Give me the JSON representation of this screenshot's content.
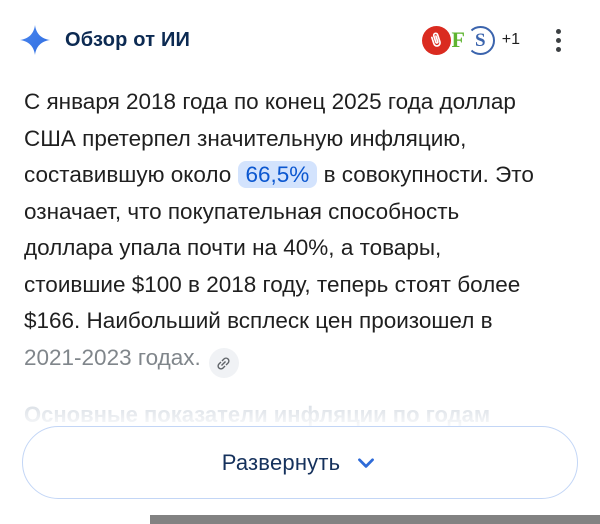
{
  "header": {
    "title": "Обзор от ИИ",
    "more_sources": "+1",
    "favicons": [
      {
        "name": "favicon-paperclip",
        "type": "paperclip",
        "bg": "#da2b20"
      },
      {
        "name": "favicon-f",
        "type": "letter",
        "letter": "F",
        "color": "#5fb431"
      },
      {
        "name": "favicon-s",
        "type": "letter",
        "letter": "S",
        "color": "#3b64ad"
      }
    ]
  },
  "body": {
    "lines": [
      [
        {
          "t": "С января 2018 года по конец 2025 года доллар"
        }
      ],
      [
        {
          "t": "США претерпел значительную инфляцию,"
        }
      ],
      [
        {
          "t": "составившую около "
        },
        {
          "t": "66,5%",
          "c": "hl"
        },
        {
          "t": " в совокупности. Это"
        }
      ],
      [
        {
          "t": "означает, что покупательная способность"
        }
      ],
      [
        {
          "t": "доллара упала почти на 40%, а товары,"
        }
      ],
      [
        {
          "t": "стоившие $100 в 2018 году, теперь стоят более"
        }
      ],
      [
        {
          "t": "$166. Наибольший всплеск цен произошел в"
        }
      ],
      [
        {
          "t": "2021-2023 годах.",
          "c": "gray"
        },
        {
          "c": "cite"
        }
      ]
    ],
    "faded_heading": "Основные показатели инфляции по годам"
  },
  "expand_button": {
    "label": "Развернуть"
  },
  "colors": {
    "accent_blue": "#0b57d0",
    "highlight_bg": "#d3e3fd",
    "title_navy": "#0c2a52",
    "body_text": "#1f1f1f",
    "gray_text": "#80868b",
    "button_border": "#c3d6f6",
    "chevron_blue": "#2e6bd8",
    "sparkle_blue": "#3e79e8",
    "home_bar_gray": "#828282"
  }
}
